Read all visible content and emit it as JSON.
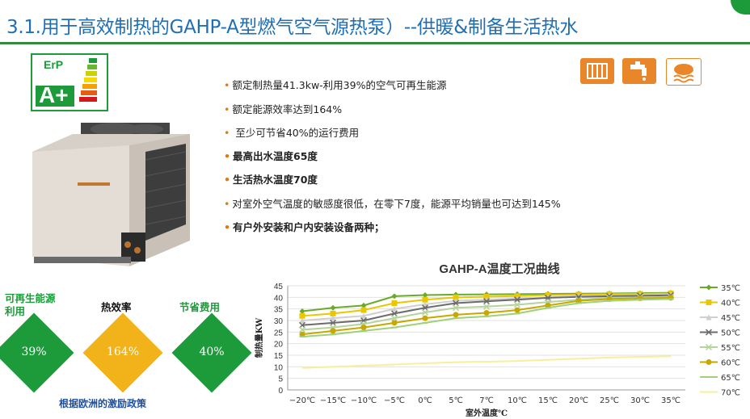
{
  "title": "3.1.用于高效制热的GAHP-A型燃气空气源热泵）--供暖&制备生活热水",
  "erp_label": "ErP",
  "erp_rating": "A+",
  "service_icons": [
    "radiator-icon",
    "hot-water-tap-icon",
    "cloud-heat-icon"
  ],
  "bullets": [
    {
      "text": "额定制热量41.3kw-利用39%的空气可再生能源",
      "bold": false
    },
    {
      "text": "额定能源效率达到164%",
      "bold": false
    },
    {
      "text": " 至少可节省40%的运行费用",
      "bold": false
    },
    {
      "text": "最高出水温度65度",
      "bold": true
    },
    {
      "text": "生活热水温度70度",
      "bold": true
    },
    {
      "text": "对室外空气温度的敏感度很低，在零下7度，能源平均销量也可达到145%",
      "bold": false
    },
    {
      "text": "有户外安装和户内安装设备两种；",
      "bold": true
    }
  ],
  "badges": [
    {
      "label": "可再生能源\n利用",
      "value": "39%",
      "color": "#1d9a3a",
      "label_color": "#1d9a3a"
    },
    {
      "label": "热效率",
      "value": "164%",
      "color": "#f2b31a",
      "label_color": "#111111"
    },
    {
      "label": "节省费用",
      "value": "40%",
      "color": "#1d9a3a",
      "label_color": "#1d9a3a"
    }
  ],
  "incentive_text": "根据欧洲的激励政策",
  "chart_data": {
    "type": "line",
    "title": "GAHP-A温度工况曲线",
    "xlabel": "室外温度℃",
    "ylabel": "制热量KW",
    "categories": [
      "−20℃",
      "−15℃",
      "−10℃",
      "−5℃",
      "0℃",
      "5℃",
      "7℃",
      "10℃",
      "15℃",
      "20℃",
      "25℃",
      "30℃",
      "35℃"
    ],
    "ylim": [
      0,
      45
    ],
    "yticks": [
      0,
      5,
      10,
      15,
      20,
      25,
      30,
      35,
      40,
      45
    ],
    "grid": true,
    "legend_position": "right",
    "series": [
      {
        "name": "35℃",
        "color": "#6aaa2a",
        "marker": "diamond",
        "values": [
          34,
          35.5,
          36.5,
          40.5,
          41,
          41.2,
          41.3,
          41.4,
          41.5,
          41.6,
          41.7,
          41.8,
          42
        ]
      },
      {
        "name": "40℃",
        "color": "#e8c800",
        "marker": "square",
        "values": [
          32,
          33,
          34.5,
          37.5,
          39,
          40,
          40.3,
          40.6,
          41,
          41.2,
          41.4,
          41.5,
          41.7
        ]
      },
      {
        "name": "45℃",
        "color": "#cfcfcf",
        "marker": "triangle",
        "values": [
          30,
          31,
          32,
          35,
          37,
          38.5,
          39,
          39.5,
          40,
          40.5,
          40.8,
          41,
          41.2
        ]
      },
      {
        "name": "50℃",
        "color": "#6b6b6b",
        "marker": "x",
        "values": [
          28,
          29,
          30,
          33,
          35.5,
          37.5,
          38.3,
          39,
          39.8,
          40.2,
          40.5,
          40.7,
          40.9
        ]
      },
      {
        "name": "55℃",
        "color": "#b5d39a",
        "marker": "x",
        "values": [
          26,
          27,
          28.5,
          31,
          33.5,
          35.5,
          36,
          36.8,
          38,
          39,
          39.8,
          40,
          40.2
        ]
      },
      {
        "name": "60℃",
        "color": "#c8a800",
        "marker": "circle",
        "values": [
          24,
          25.5,
          27,
          29,
          31,
          32.5,
          33.3,
          34.5,
          36.5,
          38.5,
          39.3,
          39.6,
          39.8
        ]
      },
      {
        "name": "65℃",
        "color": "#9fd07a",
        "marker": "dash",
        "values": [
          23,
          24,
          25.5,
          27,
          29,
          31,
          31.8,
          33,
          35.5,
          37.5,
          38.5,
          39,
          39.3
        ]
      },
      {
        "name": "70℃",
        "color": "#f7ef9a",
        "marker": "none",
        "values": [
          9.5,
          10,
          10.5,
          11,
          11.5,
          12,
          12.2,
          12.5,
          13,
          13.5,
          14,
          14.3,
          14.5
        ]
      }
    ]
  }
}
